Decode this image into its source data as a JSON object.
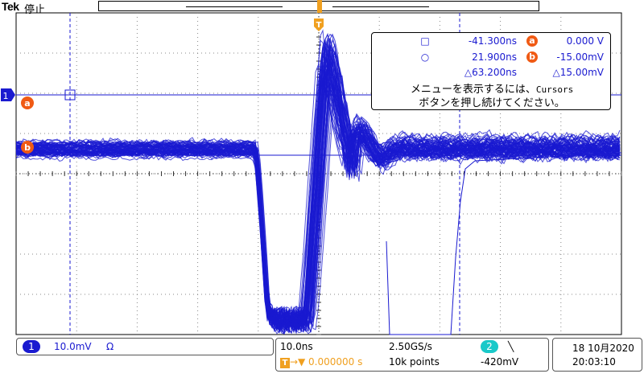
{
  "header": {
    "brand": "Tek",
    "state": "停止"
  },
  "trigger_marker": {
    "label": "T"
  },
  "channel_marker": {
    "label": "1"
  },
  "cursor_markers": {
    "a": "a",
    "b": "b"
  },
  "cursor_readout": {
    "row1": {
      "symbol": "□",
      "time": "-41.300ns",
      "tag": "a",
      "value": "0.000 V"
    },
    "row2": {
      "symbol": "○",
      "time": "21.900ns",
      "tag": "b",
      "value": "-15.00mV"
    },
    "row3": {
      "time": "△63.200ns",
      "value": "△15.00mV"
    },
    "message_line1": "メニューを表示するには、",
    "message_line1_en": "Cursors",
    "message_line2": "ボタンを押し続けてください。"
  },
  "channel_panel": {
    "channel": "1",
    "scale": "10.0mV",
    "coupling_symbol": "Ω"
  },
  "timebase_panel": {
    "time_div": "10.0ns",
    "sample_rate": "2.50GS/s",
    "trigger_channel": "2",
    "trigger_slope": "╲",
    "position": "0.000000 s",
    "record_length": "10k points",
    "trigger_level": "-420mV"
  },
  "datetime_panel": {
    "date": "18 10月2020",
    "time": "20:03:10"
  },
  "colors": {
    "trace": "#1a1ad0",
    "trigger": "#f0a020",
    "cursor_tag": "#f05a14",
    "ch2": "#1ac9c9"
  }
}
